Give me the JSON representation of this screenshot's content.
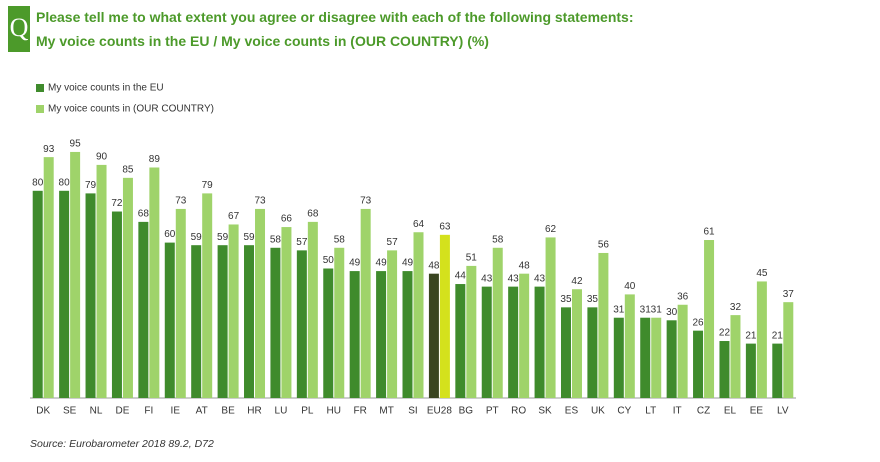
{
  "chart_data": {
    "type": "bar",
    "title": "Please tell me to what extent you agree or disagree with each of the following statements:",
    "subtitle": "My voice counts in the EU / My voice counts in (OUR COUNTRY) (%)",
    "icon": "Q",
    "source": "Source: Eurobarometer 2018 89.2, D72",
    "categories": [
      "DK",
      "SE",
      "NL",
      "DE",
      "FI",
      "IE",
      "AT",
      "BE",
      "HR",
      "LU",
      "PL",
      "HU",
      "FR",
      "MT",
      "SI",
      "EU28",
      "BG",
      "PT",
      "RO",
      "SK",
      "ES",
      "UK",
      "CY",
      "LT",
      "IT",
      "CZ",
      "EL",
      "EE",
      "LV"
    ],
    "highlight": "EU28",
    "series": [
      {
        "name": "My voice counts in the EU",
        "color": "#3f8b2c",
        "highlight_color": "#3a4520",
        "values": [
          80,
          80,
          79,
          72,
          68,
          60,
          59,
          59,
          59,
          58,
          57,
          50,
          49,
          49,
          49,
          48,
          44,
          43,
          43,
          43,
          35,
          35,
          31,
          31,
          30,
          26,
          22,
          21,
          21
        ]
      },
      {
        "name": "My voice counts in (OUR COUNTRY)",
        "color": "#9fd36a",
        "highlight_color": "#d4e11c",
        "values": [
          93,
          95,
          90,
          85,
          89,
          73,
          79,
          67,
          73,
          66,
          68,
          58,
          73,
          57,
          64,
          63,
          51,
          58,
          48,
          62,
          42,
          56,
          40,
          31,
          36,
          61,
          32,
          45,
          37
        ]
      }
    ]
  }
}
